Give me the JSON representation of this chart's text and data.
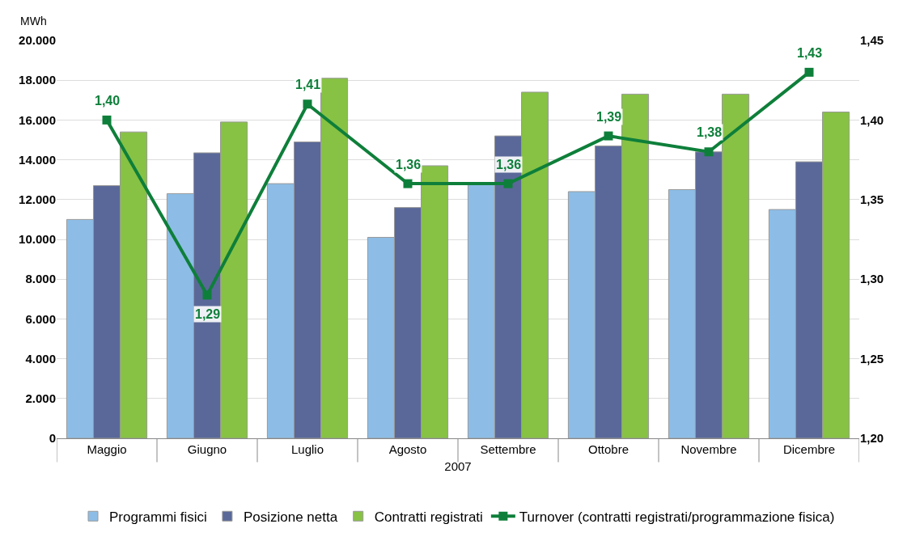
{
  "chart_data": {
    "type": "bar",
    "ylabel": "MWh",
    "xlabel": "2007",
    "categories": [
      "Maggio",
      "Giugno",
      "Luglio",
      "Agosto",
      "Settembre",
      "Ottobre",
      "Novembre",
      "Dicembre"
    ],
    "series": [
      {
        "name": "Programmi fisici",
        "color": "#8dbde6",
        "values": [
          11000,
          12300,
          12800,
          10100,
          12800,
          12400,
          12500,
          11500
        ]
      },
      {
        "name": "Posizione netta",
        "color": "#5a6899",
        "values": [
          12700,
          14350,
          14900,
          11600,
          15200,
          14700,
          14400,
          13900
        ]
      },
      {
        "name": "Contratti registrati",
        "color": "#87c244",
        "values": [
          15400,
          15900,
          18100,
          13700,
          17400,
          17300,
          17300,
          16400
        ]
      },
      {
        "name": "Turnover (contratti registrati/programmazione fisica)",
        "type": "line",
        "axis": "y2",
        "color": "#0e7f3a",
        "marker": "square",
        "values": [
          1.4,
          1.29,
          1.41,
          1.36,
          1.36,
          1.39,
          1.38,
          1.43
        ],
        "value_labels": [
          "1,40",
          "1,29",
          "1,41",
          "1,36",
          "1,36",
          "1,39",
          "1,38",
          "1,43"
        ]
      }
    ],
    "ylim": [
      0,
      20000
    ],
    "yticks": [
      {
        "value": 0,
        "label": "0"
      },
      {
        "value": 2000,
        "label": "2.000"
      },
      {
        "value": 4000,
        "label": "4.000"
      },
      {
        "value": 6000,
        "label": "6.000"
      },
      {
        "value": 8000,
        "label": "8.000"
      },
      {
        "value": 10000,
        "label": "10.000"
      },
      {
        "value": 12000,
        "label": "12.000"
      },
      {
        "value": 14000,
        "label": "14.000"
      },
      {
        "value": 16000,
        "label": "16.000"
      },
      {
        "value": 18000,
        "label": "18.000"
      },
      {
        "value": 20000,
        "label": "20.000"
      }
    ],
    "y2lim": [
      1.2,
      1.45
    ],
    "y2ticks": [
      {
        "value": 1.2,
        "label": "1,20"
      },
      {
        "value": 1.25,
        "label": "1,25"
      },
      {
        "value": 1.3,
        "label": "1,30"
      },
      {
        "value": 1.35,
        "label": "1,35"
      },
      {
        "value": 1.4,
        "label": "1,40"
      },
      {
        "value": 1.45,
        "label": "1,45"
      }
    ],
    "grid": "y",
    "legend": "bottom"
  }
}
